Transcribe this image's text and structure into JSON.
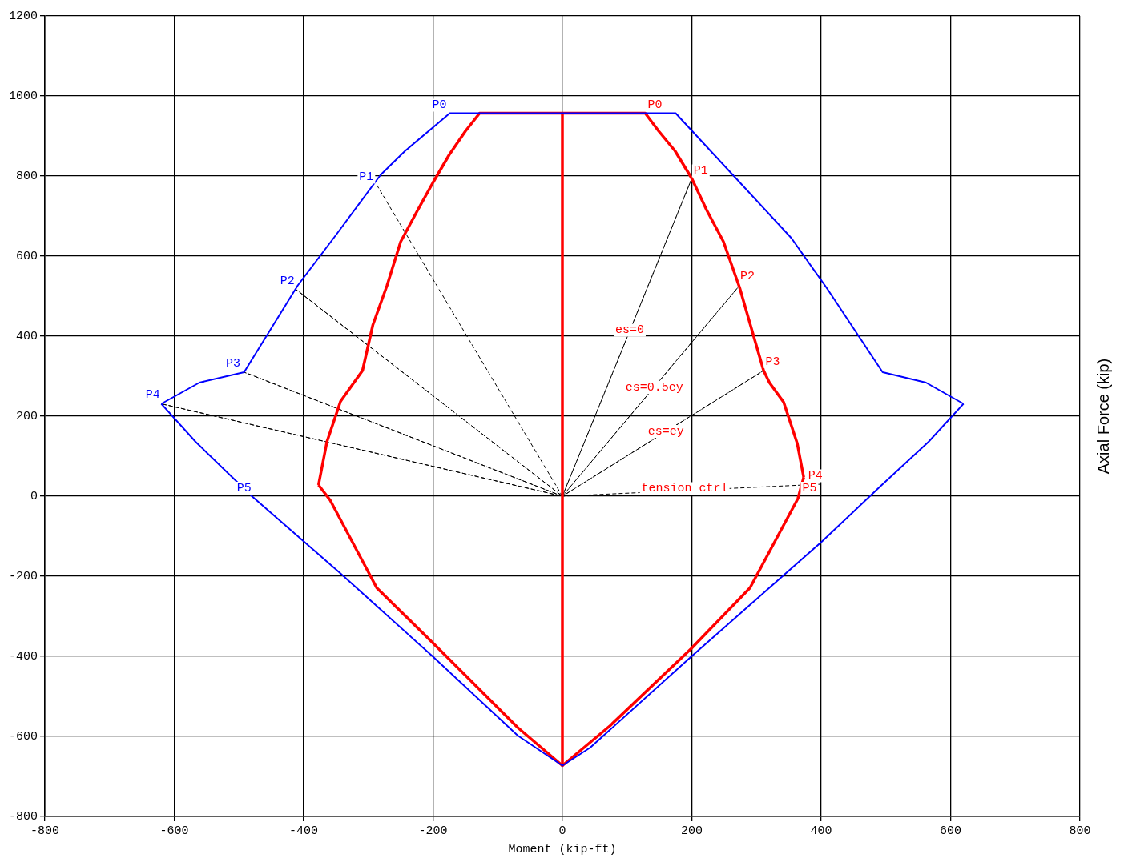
{
  "chart_data": {
    "type": "line",
    "xlabel": "Moment (kip-ft)",
    "ylabel": "Axial Force (kip)",
    "xlim": [
      -800,
      800
    ],
    "xticks": [
      -800,
      -600,
      -400,
      -200,
      0,
      200,
      400,
      600,
      800
    ],
    "ylim": [
      -800,
      1200
    ],
    "yticks": [
      -800,
      -600,
      -400,
      -200,
      0,
      200,
      400,
      600,
      800,
      1000,
      1200
    ],
    "grid": true,
    "legend": false,
    "marker": "none",
    "series": [
      {
        "color": "#0000ff",
        "x": [
          -620,
          -561,
          -492,
          -409,
          -349,
          -281,
          -243,
          -174,
          175,
          280,
          354,
          410,
          495,
          562,
          620
        ],
        "values": [
          231,
          284,
          310,
          527,
          655,
          803,
          863,
          957,
          957,
          774,
          645,
          517,
          310,
          284,
          231
        ]
      },
      {
        "color": "#0000ff",
        "x": [
          -620,
          -567,
          -480,
          -343,
          -200,
          -69,
          0,
          43,
          199,
          400,
          491,
          566,
          620
        ],
        "values": [
          231,
          136,
          0,
          -193,
          -401,
          -598,
          -673,
          -628,
          -401,
          -115,
          24,
          136,
          231
        ]
      },
      {
        "color": "#ff0000",
        "x": [
          -377,
          -364,
          -343,
          -309,
          -293,
          -271,
          -250,
          -225,
          -200,
          -175,
          -150,
          -128,
          128,
          149,
          174,
          200,
          223,
          249,
          274,
          311,
          320,
          342,
          363,
          373
        ],
        "values": [
          28,
          136,
          237,
          314,
          428,
          527,
          636,
          711,
          784,
          853,
          912,
          957,
          957,
          912,
          863,
          794,
          715,
          636,
          521,
          314,
          284,
          235,
          132,
          47
        ]
      },
      {
        "color": "#ff0000",
        "x": [
          -377,
          -359,
          -287,
          -200,
          -69,
          0,
          74,
          199,
          290,
          364,
          373
        ],
        "values": [
          28,
          -10,
          -229,
          -367,
          -578,
          -673,
          -573,
          -381,
          -229,
          -6,
          47
        ]
      },
      {
        "color": "#ff0000",
        "x": [
          0,
          0
        ],
        "values": [
          957,
          -673
        ]
      },
      {
        "color": "#000000",
        "line_style": "dashed",
        "x": [
          -287,
          0,
          -412,
          0,
          -492,
          0,
          -620,
          0,
          200,
          0,
          274,
          0,
          311,
          0,
          400
        ],
        "values": [
          778,
          0,
          517,
          0,
          310,
          0,
          231,
          0,
          794,
          0,
          527,
          0,
          314,
          0,
          30
        ]
      }
    ],
    "annotations": [
      {
        "text": "P0",
        "x": -190,
        "y": 977
      },
      {
        "text": "P1",
        "x": -303,
        "y": 797
      },
      {
        "text": "P2",
        "x": -425,
        "y": 537
      },
      {
        "text": "P3",
        "x": -509,
        "y": 332
      },
      {
        "text": "P4",
        "x": -633,
        "y": 253
      },
      {
        "text": "P5",
        "x": -492,
        "y": 20
      },
      {
        "text": "P0",
        "x": 143,
        "y": 977
      },
      {
        "text": "P1",
        "x": 214,
        "y": 813
      },
      {
        "text": "P2",
        "x": 286,
        "y": 549
      },
      {
        "text": "P3",
        "x": 325,
        "y": 336
      },
      {
        "text": "P4",
        "x": 391,
        "y": 51
      },
      {
        "text": "P5",
        "x": 382,
        "y": 20
      },
      {
        "text": "es=0",
        "x": 104,
        "y": 415
      },
      {
        "text": "es=0.5ey",
        "x": 142,
        "y": 272
      },
      {
        "text": "es=ey",
        "x": 160,
        "y": 162
      },
      {
        "text": "tension ctrl",
        "x": 189,
        "y": 19
      }
    ]
  }
}
